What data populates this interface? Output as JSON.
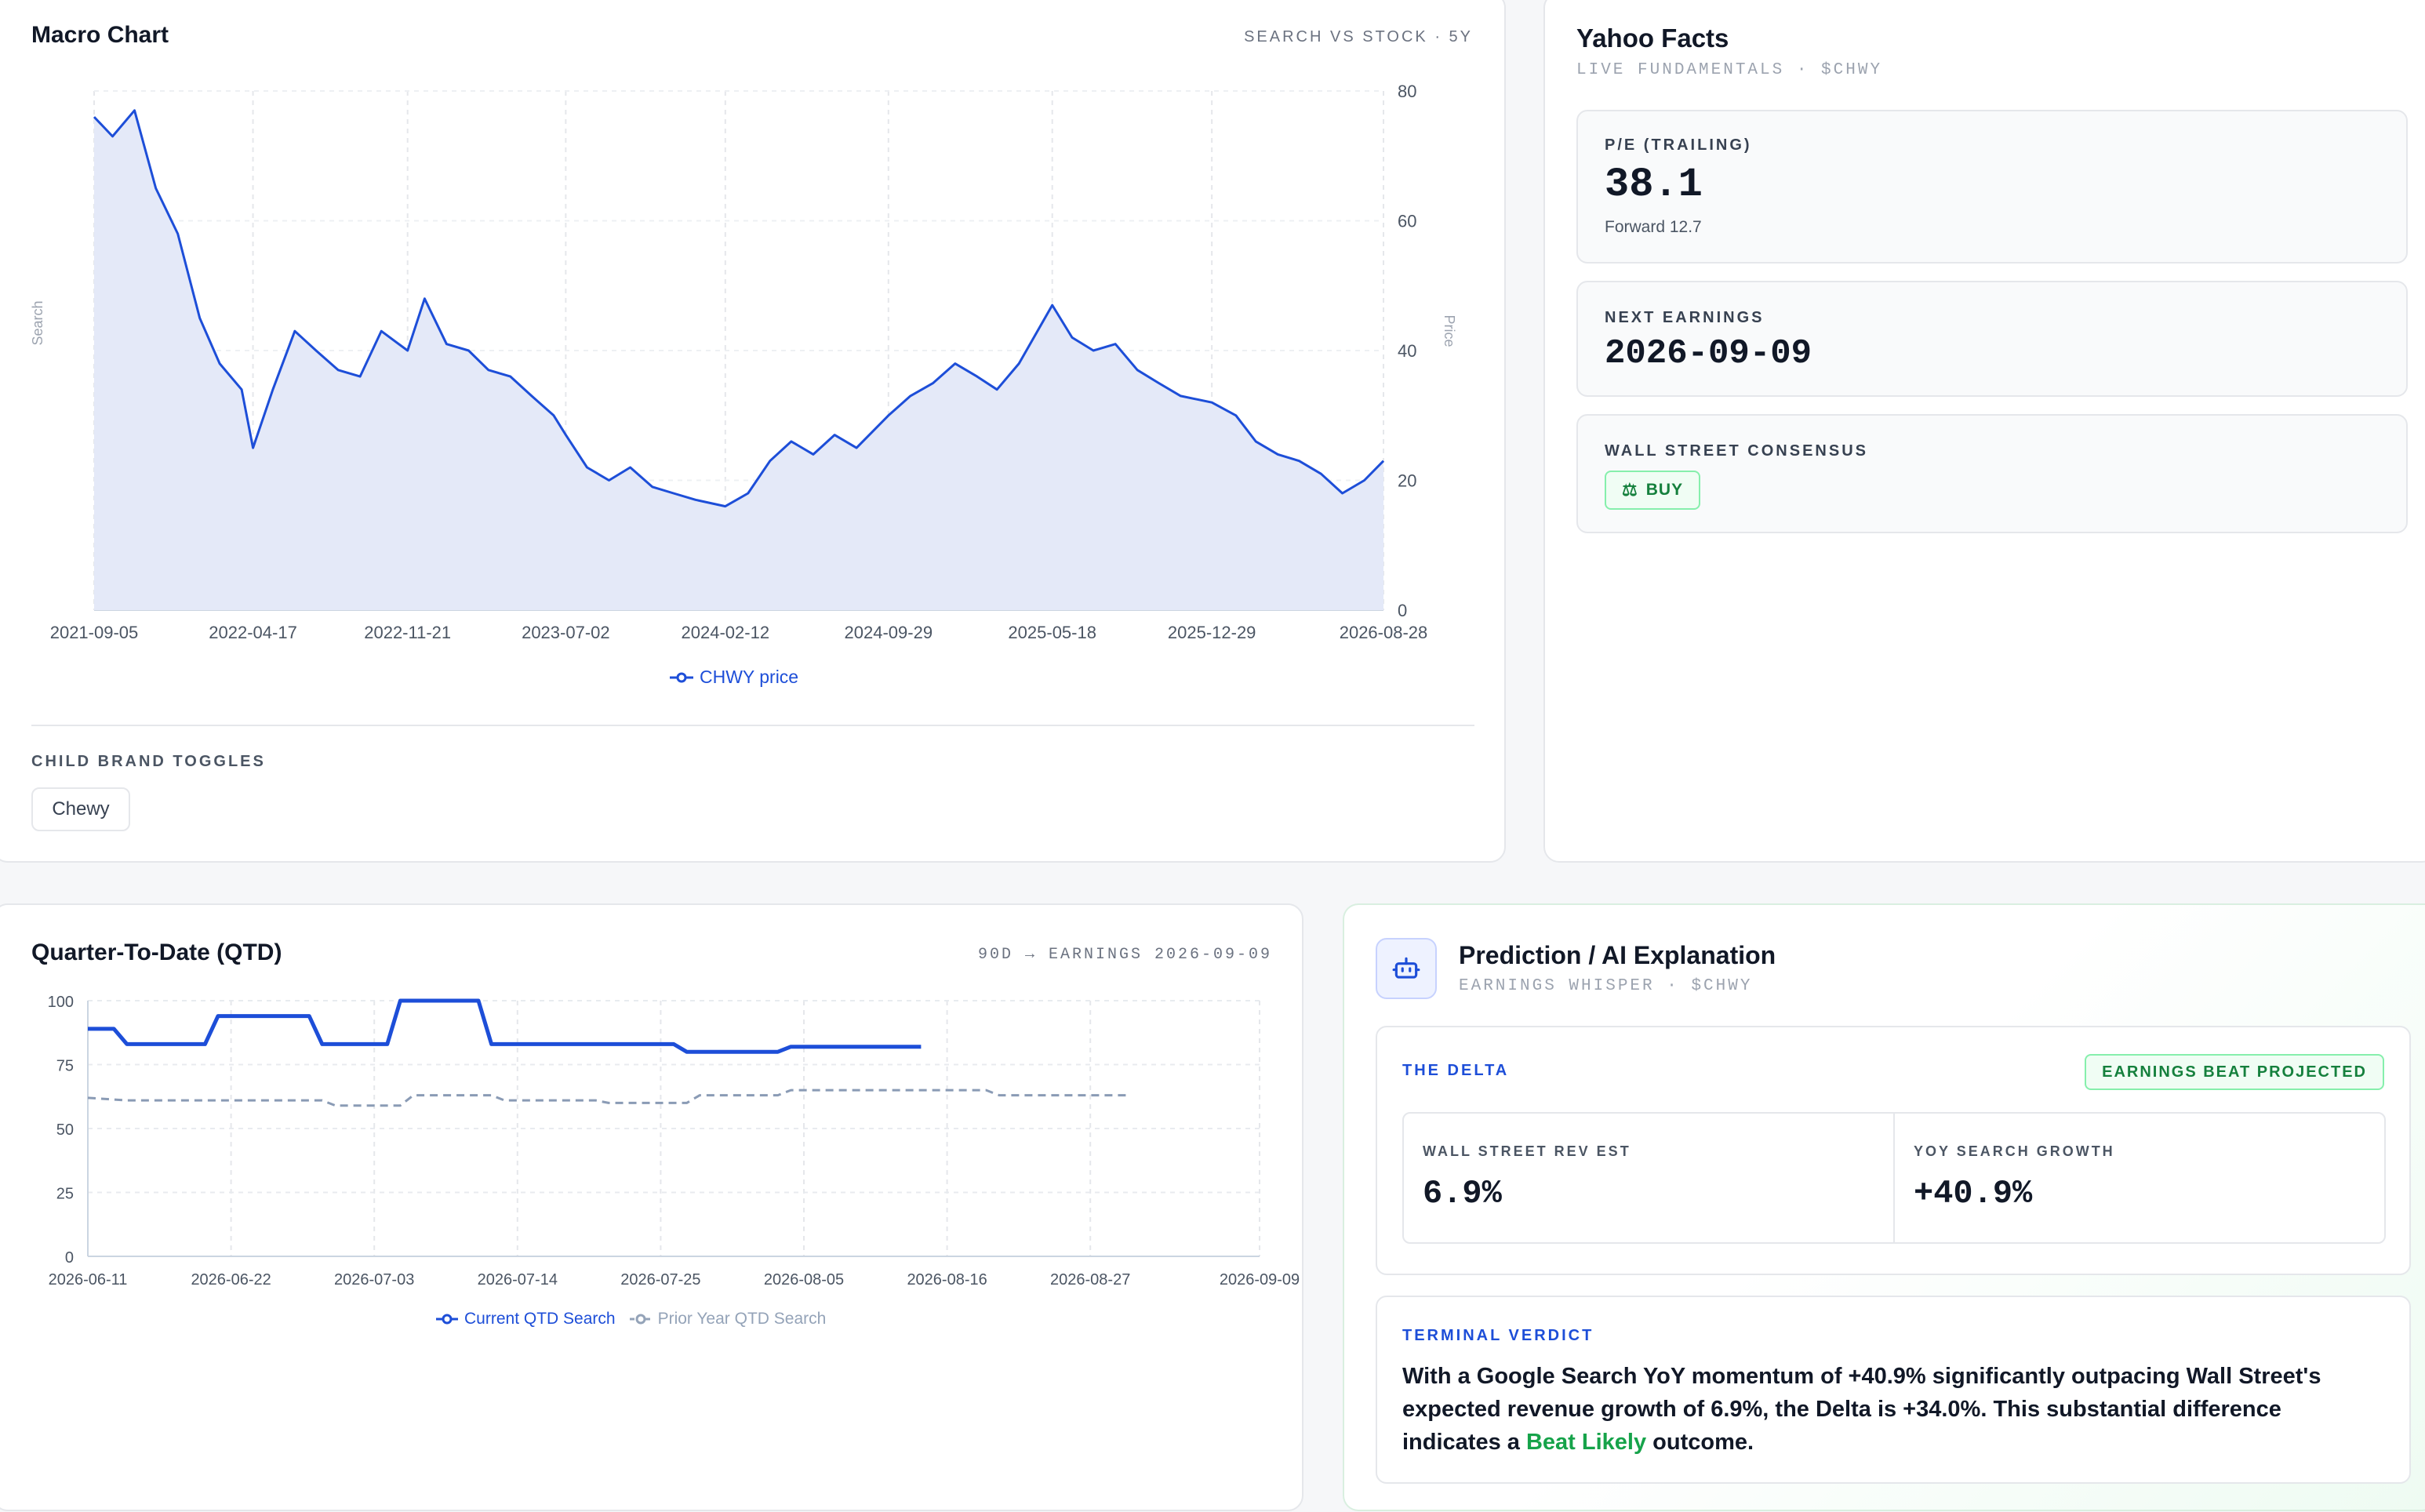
{
  "macro": {
    "title": "Macro Chart",
    "meta": "SEARCH VS STOCK · 5Y",
    "y_left_label": "Search",
    "y_right_label": "Price",
    "legend_label": "CHWY price",
    "toggles_label": "CHILD BRAND TOGGLES",
    "toggle_button": "Chewy"
  },
  "yahoo": {
    "title": "Yahoo Facts",
    "subtitle": "LIVE FUNDAMENTALS · $CHWY",
    "pe_label": "P/E (TRAILING)",
    "pe_value": "38.1",
    "pe_forward": "Forward 12.7",
    "earnings_label": "NEXT EARNINGS",
    "earnings_value": "2026-09-09",
    "consensus_label": "WALL STREET CONSENSUS",
    "consensus_value": "BUY"
  },
  "qtd": {
    "title": "Quarter-To-Date (QTD)",
    "meta": "90D → EARNINGS 2026-09-09",
    "legend_current": "Current QTD Search",
    "legend_prior": "Prior Year QTD Search"
  },
  "prediction": {
    "title": "Prediction / AI Explanation",
    "subtitle": "EARNINGS WHISPER · $CHWY",
    "delta_label": "THE DELTA",
    "delta_badge": "EARNINGS BEAT PROJECTED",
    "rev_label": "WALL STREET REV EST",
    "rev_value": "6.9%",
    "search_label": "YOY SEARCH GROWTH",
    "search_value": "+40.9%",
    "verdict_label": "TERMINAL VERDICT",
    "verdict_text": "With a Google Search YoY momentum of +40.9% significantly outpacing Wall Street's expected revenue growth of 6.9%, the Delta is +34.0%. This substantial difference indicates a ",
    "verdict_highlight": "Beat Likely",
    "verdict_end": " outcome."
  },
  "colors": {
    "accent_blue": "#1d4ed8",
    "area_fill": "#e4e9f8",
    "success_green": "#16a34a",
    "prior_gray": "#8a9bb5"
  },
  "chart_data": [
    {
      "type": "area",
      "name": "macro",
      "series": [
        {
          "name": "CHWY price",
          "x": [
            "2021-09-05",
            "2021-10-01",
            "2021-11-01",
            "2021-12-01",
            "2022-01-01",
            "2022-02-01",
            "2022-03-01",
            "2022-04-01",
            "2022-04-17",
            "2022-05-15",
            "2022-06-15",
            "2022-07-15",
            "2022-08-15",
            "2022-09-15",
            "2022-10-15",
            "2022-11-21",
            "2022-12-15",
            "2023-01-15",
            "2023-02-15",
            "2023-03-15",
            "2023-04-15",
            "2023-05-15",
            "2023-06-15",
            "2023-07-02",
            "2023-08-01",
            "2023-09-01",
            "2023-10-01",
            "2023-11-01",
            "2023-12-01",
            "2024-01-01",
            "2024-02-12",
            "2024-03-15",
            "2024-04-15",
            "2024-05-15",
            "2024-06-15",
            "2024-07-15",
            "2024-08-15",
            "2024-09-29",
            "2024-10-30",
            "2024-12-01",
            "2025-01-01",
            "2025-02-01",
            "2025-03-01",
            "2025-04-01",
            "2025-05-18",
            "2025-06-15",
            "2025-07-15",
            "2025-08-15",
            "2025-09-15",
            "2025-10-15",
            "2025-11-15",
            "2025-12-29",
            "2026-02-01",
            "2026-03-01",
            "2026-04-01",
            "2026-05-01",
            "2026-06-01",
            "2026-07-01",
            "2026-08-01",
            "2026-08-28"
          ],
          "values": [
            76,
            73,
            77,
            65,
            58,
            45,
            38,
            34,
            25,
            34,
            43,
            40,
            37,
            36,
            43,
            40,
            48,
            41,
            40,
            37,
            36,
            33,
            30,
            27,
            22,
            20,
            22,
            19,
            18,
            17,
            16,
            18,
            23,
            26,
            24,
            27,
            25,
            30,
            33,
            35,
            38,
            36,
            34,
            38,
            47,
            42,
            40,
            41,
            37,
            35,
            33,
            32,
            30,
            26,
            24,
            23,
            21,
            18,
            20,
            23
          ]
        }
      ],
      "xticks": [
        "2021-09-05",
        "2022-04-17",
        "2022-11-21",
        "2023-07-02",
        "2024-02-12",
        "2024-09-29",
        "2025-05-18",
        "2025-12-29",
        "2026-08-28"
      ],
      "ylabel_right": "Price",
      "ylabel_left": "Search",
      "ylim": [
        0,
        80
      ],
      "yticks": [
        0,
        20,
        40,
        60,
        80
      ],
      "legend": "bottom-center",
      "grid": true
    },
    {
      "type": "line",
      "name": "qtd",
      "x": [
        "2026-06-11",
        "2026-06-22",
        "2026-07-03",
        "2026-07-14",
        "2026-07-25",
        "2026-08-05",
        "2026-08-16",
        "2026-08-27",
        "2026-09-09"
      ],
      "series": [
        {
          "name": "Current QTD Search",
          "points": [
            [
              "2026-06-11",
              89
            ],
            [
              "2026-06-13",
              89
            ],
            [
              "2026-06-14",
              83
            ],
            [
              "2026-06-20",
              83
            ],
            [
              "2026-06-21",
              94
            ],
            [
              "2026-06-28",
              94
            ],
            [
              "2026-06-29",
              83
            ],
            [
              "2026-07-04",
              83
            ],
            [
              "2026-07-05",
              100
            ],
            [
              "2026-07-11",
              100
            ],
            [
              "2026-07-12",
              83
            ],
            [
              "2026-07-26",
              83
            ],
            [
              "2026-07-27",
              80
            ],
            [
              "2026-08-03",
              80
            ],
            [
              "2026-08-04",
              82
            ],
            [
              "2026-08-14",
              82
            ]
          ]
        },
        {
          "name": "Prior Year QTD Search",
          "points": [
            [
              "2026-06-11",
              62
            ],
            [
              "2026-06-14",
              61
            ],
            [
              "2026-06-29",
              61
            ],
            [
              "2026-06-30",
              59
            ],
            [
              "2026-07-05",
              59
            ],
            [
              "2026-07-06",
              63
            ],
            [
              "2026-07-12",
              63
            ],
            [
              "2026-07-13",
              61
            ],
            [
              "2026-07-20",
              61
            ],
            [
              "2026-07-21",
              60
            ],
            [
              "2026-07-27",
              60
            ],
            [
              "2026-07-28",
              63
            ],
            [
              "2026-08-03",
              63
            ],
            [
              "2026-08-04",
              65
            ],
            [
              "2026-08-19",
              65
            ],
            [
              "2026-08-20",
              63
            ],
            [
              "2026-08-30",
              63
            ]
          ]
        }
      ],
      "ylim": [
        0,
        100
      ],
      "yticks": [
        0,
        25,
        50,
        75,
        100
      ],
      "legend": "bottom-center",
      "grid": true
    }
  ]
}
